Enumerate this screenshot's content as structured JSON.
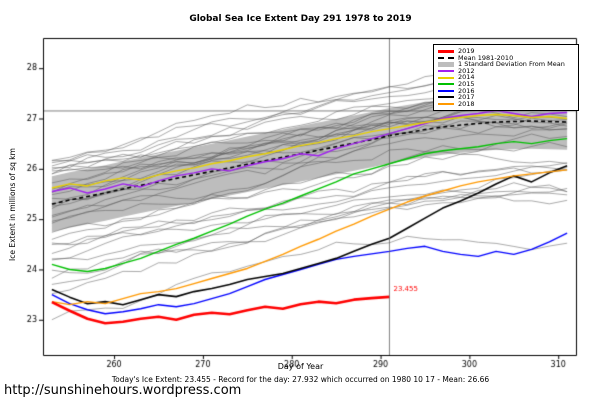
{
  "page": {
    "url": "http://sunshinehours.wordpress.com"
  },
  "chart_data": {
    "type": "line",
    "title": "Global Sea Ice Extent Day 291 1978 to 2019",
    "xlabel": "Day of Year",
    "ylabel": "Ice Extent in millions of sq km",
    "footer": "Today's Ice Extent: 23.455  -  Record for the day: 27.932 which occurred on 1980 10 17  -  Mean: 26.66",
    "xlim": [
      252,
      312
    ],
    "ylim": [
      22.3,
      28.6
    ],
    "x_ticks": [
      260,
      270,
      280,
      290,
      300,
      310
    ],
    "y_ticks": [
      23,
      24,
      25,
      26,
      27,
      28
    ],
    "grid": false,
    "legend_position": "top-right",
    "x": [
      253,
      255,
      257,
      259,
      261,
      263,
      265,
      267,
      269,
      271,
      273,
      275,
      277,
      279,
      281,
      283,
      285,
      287,
      289,
      291,
      293,
      295,
      297,
      299,
      301,
      303,
      305,
      307,
      309,
      311
    ],
    "mean": {
      "label": "Mean 1981-2010",
      "color": "#000000",
      "style": "dashed",
      "values": [
        25.3,
        25.38,
        25.45,
        25.52,
        25.6,
        25.67,
        25.74,
        25.81,
        25.88,
        25.95,
        26.02,
        26.09,
        26.16,
        26.23,
        26.3,
        26.37,
        26.44,
        26.51,
        26.58,
        26.66,
        26.72,
        26.78,
        26.83,
        26.87,
        26.9,
        26.93,
        26.94,
        26.95,
        26.94,
        26.93
      ]
    },
    "std_band": {
      "label": "1 Standard Deviation From Mean",
      "color": "#bdbdbd",
      "halfwidth": 0.55
    },
    "series": [
      {
        "name": "2019",
        "color": "#ff0000",
        "width": 2.6,
        "values": [
          23.35,
          23.18,
          23.02,
          22.93,
          22.96,
          23.02,
          23.06,
          23.0,
          23.1,
          23.14,
          23.11,
          23.19,
          23.26,
          23.22,
          23.31,
          23.36,
          23.33,
          23.4,
          23.43,
          23.455
        ]
      },
      {
        "name": "2012",
        "color": "#a020f0",
        "width": 1.4,
        "values": [
          25.55,
          25.62,
          25.52,
          25.6,
          25.7,
          25.64,
          25.76,
          25.86,
          25.92,
          26.0,
          25.96,
          26.06,
          26.14,
          26.2,
          26.3,
          26.26,
          26.4,
          26.5,
          26.6,
          26.7,
          26.8,
          26.9,
          27.0,
          27.06,
          27.1,
          27.16,
          27.1,
          27.04,
          27.1,
          27.12
        ]
      },
      {
        "name": "2014",
        "color": "#e8d000",
        "width": 1.4,
        "values": [
          25.62,
          25.7,
          25.66,
          25.76,
          25.82,
          25.78,
          25.88,
          25.96,
          26.02,
          26.1,
          26.16,
          26.24,
          26.3,
          26.38,
          26.46,
          26.52,
          26.6,
          26.66,
          26.74,
          26.8,
          26.86,
          26.92,
          26.98,
          27.02,
          27.06,
          27.08,
          27.06,
          27.02,
          27.04,
          27.0
        ]
      },
      {
        "name": "2015",
        "color": "#00c000",
        "width": 1.4,
        "values": [
          24.1,
          24.0,
          23.96,
          24.02,
          24.12,
          24.22,
          24.36,
          24.5,
          24.62,
          24.76,
          24.9,
          25.06,
          25.2,
          25.32,
          25.46,
          25.6,
          25.74,
          25.9,
          26.0,
          26.1,
          26.2,
          26.3,
          26.36,
          26.4,
          26.44,
          26.5,
          26.54,
          26.5,
          26.56,
          26.6
        ]
      },
      {
        "name": "2016",
        "color": "#0000ff",
        "width": 1.4,
        "values": [
          23.5,
          23.32,
          23.2,
          23.12,
          23.16,
          23.22,
          23.3,
          23.26,
          23.32,
          23.42,
          23.52,
          23.66,
          23.8,
          23.9,
          24.0,
          24.1,
          24.2,
          24.26,
          24.31,
          24.36,
          24.42,
          24.46,
          24.36,
          24.3,
          24.26,
          24.36,
          24.3,
          24.4,
          24.55,
          24.72
        ]
      },
      {
        "name": "2017",
        "color": "#000000",
        "width": 1.6,
        "values": [
          23.6,
          23.45,
          23.32,
          23.36,
          23.3,
          23.4,
          23.5,
          23.46,
          23.56,
          23.62,
          23.7,
          23.8,
          23.86,
          23.92,
          24.02,
          24.12,
          24.22,
          24.36,
          24.5,
          24.62,
          24.82,
          25.02,
          25.22,
          25.36,
          25.52,
          25.7,
          25.86,
          25.74,
          25.92,
          26.06
        ]
      },
      {
        "name": "2018",
        "color": "#ff9900",
        "width": 1.4,
        "values": [
          23.36,
          23.3,
          23.36,
          23.32,
          23.42,
          23.52,
          23.56,
          23.62,
          23.72,
          23.82,
          23.92,
          24.02,
          24.16,
          24.3,
          24.46,
          24.6,
          24.76,
          24.9,
          25.06,
          25.2,
          25.34,
          25.46,
          25.56,
          25.66,
          25.74,
          25.8,
          25.86,
          25.9,
          25.94,
          25.98
        ]
      }
    ],
    "background_years": {
      "count": 34,
      "offset_min": -2.3,
      "offset_max": 0.95,
      "color": "#5a5a5a"
    },
    "crosshair": {
      "x": 291,
      "y": 27.15
    },
    "annotation": {
      "x": 291,
      "y": 23.455,
      "text": "23.455",
      "color": "#ff0000"
    },
    "legend": [
      {
        "label": "2019",
        "color": "#ff0000",
        "swatch": "line",
        "width": 3
      },
      {
        "label": "Mean 1981-2010",
        "color": "#000000",
        "swatch": "dash",
        "width": 2
      },
      {
        "label": "1 Standard Deviation From Mean",
        "color": "#bdbdbd",
        "swatch": "band"
      },
      {
        "label": "2012",
        "color": "#a020f0",
        "swatch": "line",
        "width": 2
      },
      {
        "label": "2014",
        "color": "#e8d000",
        "swatch": "line",
        "width": 2
      },
      {
        "label": "2015",
        "color": "#00c000",
        "swatch": "line",
        "width": 2
      },
      {
        "label": "2016",
        "color": "#0000ff",
        "swatch": "line",
        "width": 2
      },
      {
        "label": "2017",
        "color": "#000000",
        "swatch": "line",
        "width": 2
      },
      {
        "label": "2018",
        "color": "#ff9900",
        "swatch": "line",
        "width": 2
      }
    ]
  }
}
